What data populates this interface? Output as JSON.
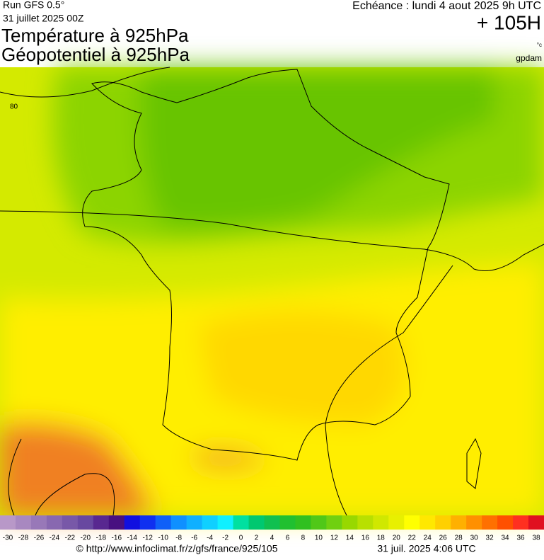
{
  "header": {
    "run": "Run GFS 0.5°",
    "date": "31 juillet 2025 00Z",
    "title1": "Température à 925hPa",
    "title2": "Géopotentiel à 925hPa",
    "echeance": "Echéance : lundi 4 aout 2025 9h UTC",
    "lead": "+ 105H",
    "unit": "°c",
    "source": "gpdam"
  },
  "map": {
    "contour_label": "80"
  },
  "scale": {
    "ticks": [
      -30,
      -28,
      -26,
      -24,
      -22,
      -20,
      -18,
      -16,
      -14,
      -12,
      -10,
      -8,
      -6,
      -4,
      -2,
      0,
      2,
      4,
      6,
      8,
      10,
      12,
      14,
      16,
      18,
      20,
      22,
      24,
      26,
      28,
      30,
      32,
      34,
      36,
      38
    ],
    "colors": [
      "#b898c8",
      "#a888c0",
      "#9878b8",
      "#8868b0",
      "#7858a8",
      "#6848a0",
      "#582890",
      "#481080",
      "#1010e0",
      "#1030f0",
      "#1060f8",
      "#1090ff",
      "#10b0ff",
      "#10d0ff",
      "#10f0ff",
      "#00e0a0",
      "#00c870",
      "#10c050",
      "#20c030",
      "#30c020",
      "#50c818",
      "#70d010",
      "#98d800",
      "#b8e000",
      "#d0e800",
      "#e8f000",
      "#ffff00",
      "#ffe800",
      "#ffd000",
      "#ffb000",
      "#ff9000",
      "#ff7000",
      "#ff5000",
      "#ff3020",
      "#e01020"
    ]
  },
  "footer": {
    "url": "© http://www.infoclimat.fr/z/gfs/france/925/105",
    "time": "31 juil. 2025  4:06 UTC"
  }
}
